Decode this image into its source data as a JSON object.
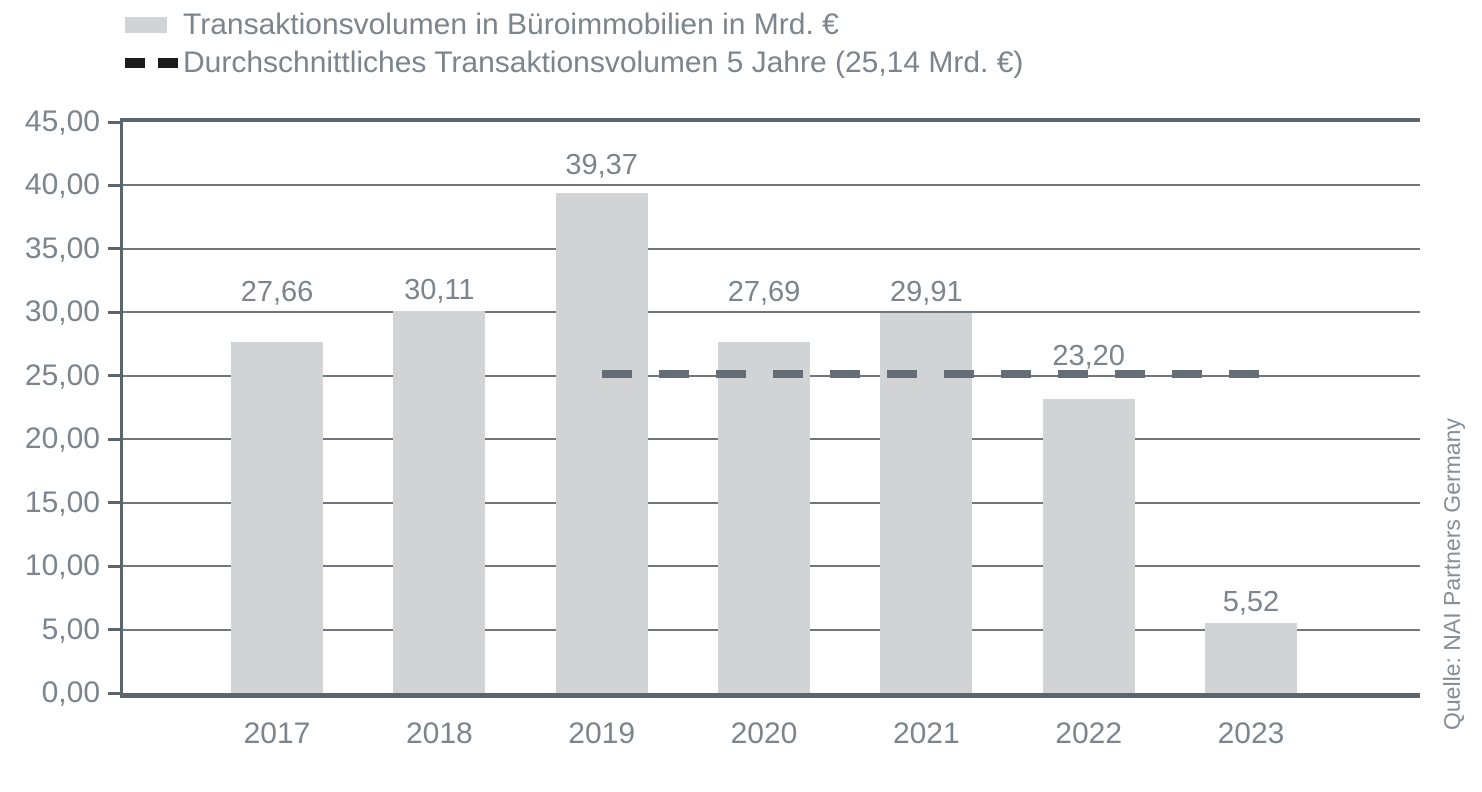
{
  "legend": {
    "items": [
      {
        "label": "Transaktionsvolumen in Büroimmobilien in Mrd. €",
        "swatch": "bar"
      },
      {
        "label": "Durchschnittliches Transaktionsvolumen 5 Jahre (25,14 Mrd. €)",
        "swatch": "dashed-line"
      }
    ]
  },
  "source_note": "Quelle: NAI Partners Germany",
  "chart_data": {
    "type": "bar",
    "title": "",
    "xlabel": "",
    "ylabel": "",
    "categories": [
      "2017",
      "2018",
      "2019",
      "2020",
      "2021",
      "2022",
      "2023"
    ],
    "values": [
      27.66,
      30.11,
      39.37,
      27.69,
      29.91,
      23.2,
      5.52
    ],
    "value_labels": [
      "27,66",
      "30,11",
      "39,37",
      "27,69",
      "29,91",
      "23,20",
      "5,52"
    ],
    "series_name": "Transaktionsvolumen in Büroimmobilien in Mrd. €",
    "average_line": {
      "name": "Durchschnittliches Transaktionsvolumen 5 Jahre",
      "value": 25.14,
      "value_label": "25,14 Mrd. €",
      "from_category": "2019",
      "to_category": "2023",
      "style": "dashed"
    },
    "ylim": [
      0,
      45
    ],
    "ytick_step": 5,
    "ytick_labels": [
      "0,00",
      "5,00",
      "10,00",
      "15,00",
      "20,00",
      "25,00",
      "30,00",
      "35,00",
      "40,00",
      "45,00"
    ],
    "grid": true,
    "legend_position": "top-left",
    "colors": {
      "bar": "#d1d3d5",
      "grid": "#6e767e",
      "axis": "#5b656d",
      "average_dash": "#656d76",
      "legend_dash": "#1b1b1b",
      "text": "#7c848d"
    }
  }
}
